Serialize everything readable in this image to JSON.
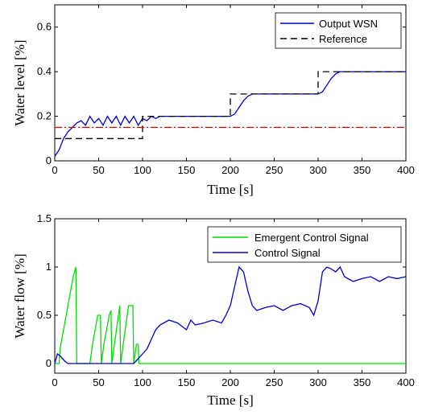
{
  "chart_data": [
    {
      "type": "line",
      "xlabel": "Time [s]",
      "ylabel": "Water level [%]",
      "xlim": [
        0,
        400
      ],
      "ylim": [
        0,
        0.7
      ],
      "xticks": [
        "0",
        "50",
        "100",
        "150",
        "200",
        "250",
        "300",
        "350",
        "400"
      ],
      "yticks": [
        "0",
        "0.2",
        "0.4",
        "0.6"
      ],
      "ytick_values": [
        0,
        0.2,
        0.4,
        0.6
      ],
      "grid": false,
      "legend_position": "top-right",
      "series": [
        {
          "name": "Output WSN",
          "color": "#0000cc",
          "style": "solid",
          "x": [
            0,
            5,
            10,
            15,
            20,
            25,
            30,
            35,
            40,
            45,
            50,
            55,
            60,
            65,
            70,
            75,
            80,
            85,
            90,
            95,
            100,
            105,
            110,
            115,
            120,
            130,
            140,
            150,
            160,
            170,
            180,
            190,
            197,
            200,
            205,
            210,
            215,
            220,
            225,
            230,
            240,
            250,
            260,
            270,
            280,
            290,
            297,
            300,
            305,
            310,
            315,
            320,
            325,
            330,
            340,
            350,
            360,
            370,
            380,
            390,
            400
          ],
          "values": [
            0.02,
            0.05,
            0.1,
            0.13,
            0.15,
            0.17,
            0.18,
            0.16,
            0.2,
            0.17,
            0.19,
            0.16,
            0.2,
            0.17,
            0.2,
            0.16,
            0.2,
            0.17,
            0.2,
            0.16,
            0.19,
            0.18,
            0.2,
            0.19,
            0.2,
            0.2,
            0.2,
            0.2,
            0.2,
            0.2,
            0.2,
            0.2,
            0.2,
            0.2,
            0.21,
            0.24,
            0.27,
            0.29,
            0.3,
            0.3,
            0.3,
            0.3,
            0.3,
            0.3,
            0.3,
            0.3,
            0.3,
            0.3,
            0.31,
            0.34,
            0.37,
            0.39,
            0.4,
            0.4,
            0.4,
            0.4,
            0.4,
            0.4,
            0.4,
            0.4,
            0.4
          ]
        },
        {
          "name": "Reference",
          "color": "#000000",
          "style": "dashed",
          "x": [
            0,
            100,
            100,
            200,
            200,
            300,
            300,
            400
          ],
          "values": [
            0.1,
            0.1,
            0.2,
            0.2,
            0.3,
            0.3,
            0.4,
            0.4
          ]
        },
        {
          "name": "",
          "color": "#dd0000",
          "style": "dashdot",
          "x": [
            0,
            400
          ],
          "values": [
            0.15,
            0.15
          ]
        }
      ]
    },
    {
      "type": "line",
      "xlabel": "Time [s]",
      "ylabel": "Water flow [%]",
      "xlim": [
        0,
        400
      ],
      "ylim": [
        -0.1,
        1.5
      ],
      "xticks": [
        "0",
        "50",
        "100",
        "150",
        "200",
        "250",
        "300",
        "350",
        "400"
      ],
      "yticks": [
        "0",
        "0.5",
        "1",
        "1.5"
      ],
      "ytick_values": [
        0,
        0.5,
        1,
        1.5
      ],
      "grid": false,
      "legend_position": "top-right",
      "series": [
        {
          "name": "Emergent Control Signal",
          "color": "#00dd00",
          "style": "solid",
          "x": [
            0,
            5,
            6,
            9,
            12,
            15,
            18,
            21,
            24,
            25,
            40,
            43,
            46,
            49,
            52,
            53,
            56,
            59,
            62,
            64,
            65,
            68,
            71,
            74,
            75,
            78,
            81,
            84,
            87,
            89,
            90,
            93,
            95,
            96,
            97,
            400
          ],
          "values": [
            0,
            0,
            0.15,
            0.3,
            0.45,
            0.6,
            0.75,
            0.9,
            1.0,
            0,
            0,
            0.2,
            0.35,
            0.5,
            0.5,
            0,
            0.2,
            0.35,
            0.5,
            0.55,
            0,
            0.2,
            0.4,
            0.6,
            0,
            0.2,
            0.4,
            0.6,
            0.6,
            0.6,
            0,
            0.2,
            0.2,
            0,
            0,
            0
          ]
        },
        {
          "name": "Control Signal",
          "color": "#0000cc",
          "style": "solid",
          "x": [
            0,
            3,
            6,
            9,
            12,
            15,
            20,
            25,
            30,
            40,
            50,
            60,
            70,
            80,
            90,
            95,
            100,
            105,
            110,
            115,
            120,
            130,
            140,
            150,
            155,
            160,
            170,
            180,
            190,
            195,
            200,
            205,
            210,
            215,
            220,
            225,
            230,
            240,
            250,
            260,
            270,
            280,
            290,
            295,
            300,
            305,
            310,
            315,
            320,
            325,
            330,
            340,
            350,
            360,
            370,
            380,
            390,
            400
          ],
          "values": [
            0,
            0.1,
            0.08,
            0.05,
            0.02,
            0,
            0,
            0,
            0,
            0,
            0,
            0,
            0,
            0,
            0,
            0.05,
            0.1,
            0.15,
            0.25,
            0.35,
            0.4,
            0.45,
            0.42,
            0.35,
            0.45,
            0.4,
            0.42,
            0.45,
            0.42,
            0.5,
            0.6,
            0.8,
            1.0,
            0.95,
            0.75,
            0.6,
            0.55,
            0.58,
            0.6,
            0.55,
            0.6,
            0.62,
            0.58,
            0.5,
            0.65,
            0.95,
            1.0,
            0.98,
            0.95,
            1.0,
            0.9,
            0.85,
            0.88,
            0.9,
            0.85,
            0.9,
            0.88,
            0.9
          ]
        }
      ]
    }
  ]
}
